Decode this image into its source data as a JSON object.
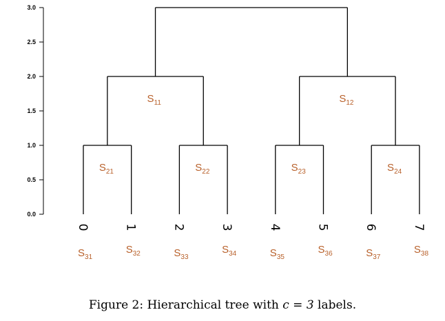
{
  "caption": {
    "prefix": "Figure 2: Hierarchical tree with ",
    "math": "c = 3",
    "suffix": " labels."
  },
  "chart_data": {
    "type": "dendrogram",
    "ylim": [
      0,
      3
    ],
    "yticks": [
      "0.0",
      "0.5",
      "1.0",
      "1.5",
      "2.0",
      "2.5",
      "3.0"
    ],
    "leaves": [
      "0",
      "1",
      "2",
      "3",
      "4",
      "5",
      "6",
      "7"
    ],
    "merges": [
      {
        "left": "0",
        "right": "1",
        "height": 1.0,
        "label": "S",
        "sub": "21"
      },
      {
        "left": "2",
        "right": "3",
        "height": 1.0,
        "label": "S",
        "sub": "22"
      },
      {
        "left": "4",
        "right": "5",
        "height": 1.0,
        "label": "S",
        "sub": "23"
      },
      {
        "left": "6",
        "right": "7",
        "height": 1.0,
        "label": "S",
        "sub": "24"
      },
      {
        "left": "S21",
        "right": "S22",
        "height": 2.0,
        "label": "S",
        "sub": "11"
      },
      {
        "left": "S23",
        "right": "S24",
        "height": 2.0,
        "label": "S",
        "sub": "12"
      },
      {
        "left": "S11",
        "right": "S12",
        "height": 3.0,
        "label": "",
        "sub": ""
      }
    ],
    "leaf_node_labels": [
      {
        "label": "S",
        "sub": "31"
      },
      {
        "label": "S",
        "sub": "32"
      },
      {
        "label": "S",
        "sub": "33"
      },
      {
        "label": "S",
        "sub": "34"
      },
      {
        "label": "S",
        "sub": "35"
      },
      {
        "label": "S",
        "sub": "36"
      },
      {
        "label": "S",
        "sub": "37"
      },
      {
        "label": "S",
        "sub": "38"
      }
    ],
    "colors": {
      "line": "#000000",
      "node_label": "#b8602a"
    }
  }
}
